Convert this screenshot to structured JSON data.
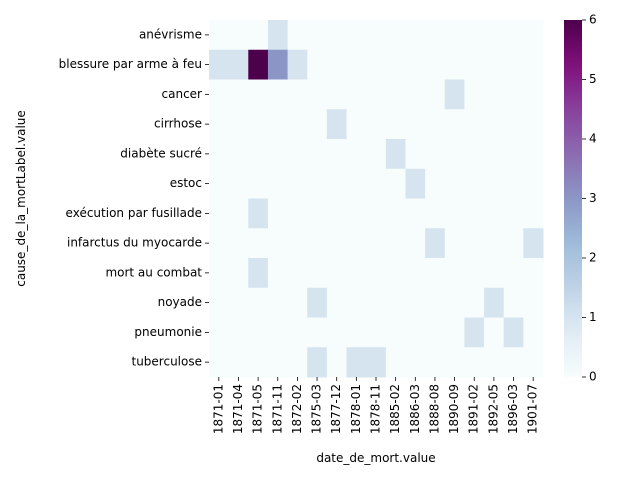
{
  "chart_data": {
    "type": "heatmap",
    "xlabel": "date_de_mort.value",
    "ylabel": "cause_de_la_mortLabel.value",
    "x_categories": [
      "1871-01",
      "1871-04",
      "1871-05",
      "1871-11",
      "1872-02",
      "1875-03",
      "1877-12",
      "1878-01",
      "1878-11",
      "1885-02",
      "1886-03",
      "1888-08",
      "1890-09",
      "1891-02",
      "1892-05",
      "1896-03",
      "1901-07"
    ],
    "y_categories": [
      "anévrisme",
      "blessure par arme à feu",
      "cancer",
      "cirrhose",
      "diabète sucré",
      "estoc",
      "exécution par fusillade",
      "infarctus du myocarde",
      "mort au combat",
      "noyade",
      "pneumonie",
      "tuberculose"
    ],
    "values": [
      [
        0,
        0,
        0,
        1,
        0,
        0,
        0,
        0,
        0,
        0,
        0,
        0,
        0,
        0,
        0,
        0,
        0
      ],
      [
        1,
        1,
        6,
        3,
        1,
        0,
        0,
        0,
        0,
        0,
        0,
        0,
        0,
        0,
        0,
        0,
        0
      ],
      [
        0,
        0,
        0,
        0,
        0,
        0,
        0,
        0,
        0,
        0,
        0,
        0,
        1,
        0,
        0,
        0,
        0
      ],
      [
        0,
        0,
        0,
        0,
        0,
        0,
        1,
        0,
        0,
        0,
        0,
        0,
        0,
        0,
        0,
        0,
        0
      ],
      [
        0,
        0,
        0,
        0,
        0,
        0,
        0,
        0,
        0,
        1,
        0,
        0,
        0,
        0,
        0,
        0,
        0
      ],
      [
        0,
        0,
        0,
        0,
        0,
        0,
        0,
        0,
        0,
        0,
        1,
        0,
        0,
        0,
        0,
        0,
        0
      ],
      [
        0,
        0,
        1,
        0,
        0,
        0,
        0,
        0,
        0,
        0,
        0,
        0,
        0,
        0,
        0,
        0,
        0
      ],
      [
        0,
        0,
        0,
        0,
        0,
        0,
        0,
        0,
        0,
        0,
        0,
        1,
        0,
        0,
        0,
        0,
        1
      ],
      [
        0,
        0,
        1,
        0,
        0,
        0,
        0,
        0,
        0,
        0,
        0,
        0,
        0,
        0,
        0,
        0,
        0
      ],
      [
        0,
        0,
        0,
        0,
        0,
        1,
        0,
        0,
        0,
        0,
        0,
        0,
        0,
        0,
        1,
        0,
        0
      ],
      [
        0,
        0,
        0,
        0,
        0,
        0,
        0,
        0,
        0,
        0,
        0,
        0,
        0,
        1,
        0,
        1,
        0
      ],
      [
        0,
        0,
        0,
        0,
        0,
        1,
        0,
        1,
        1,
        0,
        0,
        0,
        0,
        0,
        0,
        0,
        0
      ]
    ],
    "colorbar": {
      "min": 0,
      "max": 6,
      "ticks": [
        0,
        1,
        2,
        3,
        4,
        5,
        6
      ],
      "colormap": "BuPu"
    },
    "grid": false
  }
}
